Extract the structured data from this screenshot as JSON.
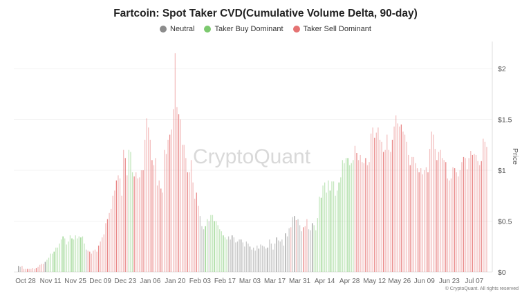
{
  "chart_data": {
    "type": "bar",
    "title": "Fartcoin: Spot Taker CVD(Cumulative Volume Delta, 90-day)",
    "legend": [
      {
        "key": "N",
        "label": "Neutral",
        "color": "#8c8c8c"
      },
      {
        "key": "B",
        "label": "Taker Buy Dominant",
        "color": "#7cc96f"
      },
      {
        "key": "S",
        "label": "Taker Sell Dominant",
        "color": "#e57373"
      }
    ],
    "legend_placement": "top",
    "ylabel": "Price",
    "y_axis_side": "right",
    "ylim": [
      0,
      2.25
    ],
    "y_ticks": [
      {
        "v": 0,
        "label": "$0"
      },
      {
        "v": 0.5,
        "label": "$0.5"
      },
      {
        "v": 1,
        "label": "$1"
      },
      {
        "v": 1.5,
        "label": "$1.5"
      },
      {
        "v": 2,
        "label": "$2"
      }
    ],
    "x_ticks": [
      {
        "i": 4,
        "label": "Oct 28"
      },
      {
        "i": 18,
        "label": "Nov 11"
      },
      {
        "i": 32,
        "label": "Nov 25"
      },
      {
        "i": 46,
        "label": "Dec 09"
      },
      {
        "i": 60,
        "label": "Dec 23"
      },
      {
        "i": 74,
        "label": "Jan 06"
      },
      {
        "i": 88,
        "label": "Jan 20"
      },
      {
        "i": 102,
        "label": "Feb 03"
      },
      {
        "i": 116,
        "label": "Feb 17"
      },
      {
        "i": 130,
        "label": "Mar 03"
      },
      {
        "i": 144,
        "label": "Mar 17"
      },
      {
        "i": 158,
        "label": "Mar 31"
      },
      {
        "i": 172,
        "label": "Apr 14"
      },
      {
        "i": 186,
        "label": "Apr 28"
      },
      {
        "i": 200,
        "label": "May 12"
      },
      {
        "i": 214,
        "label": "May 26"
      },
      {
        "i": 228,
        "label": "Jun 09"
      },
      {
        "i": 242,
        "label": "Jun 23"
      },
      {
        "i": 256,
        "label": "Jul 07"
      }
    ],
    "grid": true,
    "values": [
      0.06,
      0.05,
      0.06,
      0.03,
      0.03,
      0.03,
      0.03,
      0.03,
      0.04,
      0.03,
      0.04,
      0.05,
      0.07,
      0.08,
      0.08,
      0.1,
      0.12,
      0.14,
      0.18,
      0.18,
      0.2,
      0.24,
      0.24,
      0.28,
      0.32,
      0.35,
      0.33,
      0.27,
      0.3,
      0.36,
      0.33,
      0.32,
      0.36,
      0.33,
      0.35,
      0.34,
      0.35,
      0.28,
      0.22,
      0.21,
      0.2,
      0.18,
      0.21,
      0.22,
      0.2,
      0.26,
      0.3,
      0.34,
      0.37,
      0.48,
      0.52,
      0.58,
      0.62,
      0.75,
      0.8,
      0.9,
      0.95,
      0.92,
      0.75,
      1.2,
      1.12,
      0.95,
      1.2,
      1.18,
      0.98,
      0.94,
      0.98,
      0.92,
      0.93,
      1.0,
      1.0,
      1.3,
      1.51,
      1.42,
      1.3,
      1.1,
      1.05,
      1.12,
      0.85,
      0.9,
      0.82,
      0.78,
      1.2,
      1.16,
      1.3,
      1.35,
      1.4,
      1.6,
      2.15,
      1.62,
      1.55,
      1.5,
      1.25,
      1.25,
      1.12,
      0.98,
      0.98,
      1.1,
      0.88,
      0.72,
      0.78,
      0.65,
      0.55,
      0.45,
      0.42,
      0.45,
      0.52,
      0.5,
      0.56,
      0.56,
      0.5,
      0.5,
      0.46,
      0.42,
      0.4,
      0.36,
      0.34,
      0.32,
      0.35,
      0.32,
      0.36,
      0.34,
      0.29,
      0.3,
      0.32,
      0.32,
      0.29,
      0.25,
      0.3,
      0.28,
      0.25,
      0.22,
      0.24,
      0.21,
      0.26,
      0.23,
      0.27,
      0.26,
      0.25,
      0.23,
      0.24,
      0.32,
      0.28,
      0.22,
      0.28,
      0.34,
      0.31,
      0.3,
      0.32,
      0.26,
      0.38,
      0.35,
      0.43,
      0.44,
      0.54,
      0.55,
      0.51,
      0.52,
      0.46,
      0.4,
      0.44,
      0.45,
      0.52,
      0.42,
      0.41,
      0.48,
      0.46,
      0.41,
      0.53,
      0.74,
      0.73,
      0.85,
      0.88,
      0.78,
      0.9,
      0.8,
      0.89,
      0.89,
      0.75,
      0.8,
      0.88,
      0.93,
      1.1,
      1.07,
      1.12,
      1.12,
      1.05,
      1.07,
      1.1,
      1.24,
      1.17,
      1.1,
      1.15,
      1.08,
      1.07,
      1.12,
      1.05,
      1.08,
      1.36,
      1.42,
      1.32,
      1.37,
      1.42,
      1.3,
      1.28,
      1.18,
      1.2,
      1.35,
      1.2,
      1.18,
      1.3,
      1.43,
      1.54,
      1.46,
      1.43,
      1.45,
      1.38,
      1.35,
      1.28,
      1.15,
      1.05,
      1.13,
      1.13,
      1.07,
      1.02,
      0.98,
      1.02,
      0.96,
      1.0,
      1.03,
      0.98,
      1.21,
      1.38,
      1.35,
      1.21,
      1.1,
      1.18,
      1.2,
      1.12,
      1.1,
      1.08,
      0.92,
      0.9,
      0.92,
      1.03,
      1.02,
      0.98,
      0.94,
      1.0,
      1.08,
      1.13,
      1.12,
      1.01,
      1.12,
      1.19,
      1.15,
      1.16,
      1.15,
      1.09,
      1.05,
      1.09,
      1.31,
      1.28,
      1.23
    ],
    "categories_class": "NNSSSSSSSSSSSSSNBBBBBBBBBBBBBBBBBBBBBBNSSSSSSSSSSSSSSSSSSSSSSSBBBSSSSSSSSSSSSSSSSSSSSSSSSSSSSSSSSSSSSSNNNBBNBBBBBBBBBBNNNNNNNNNNNNNNNNNNNNNNNNNNNNNNNNNNNSNNSNNNSSSNNNBBBBBBBBBBBBBBBBBBBBBBBSSSSSSSSSSSSSSSSSSSSSSSSSSSSSSSSSSSSSSSSSSSSSSSSSSSSSSSSSSSSSSSSSSSSSSSSSSSSSSSSSSSSSSSSSSSSNNNNNNBBBBBBBBBBBBB"
  },
  "watermark": "CryptoQuant",
  "copyright": "© CryptoQuant. All rights reserved"
}
